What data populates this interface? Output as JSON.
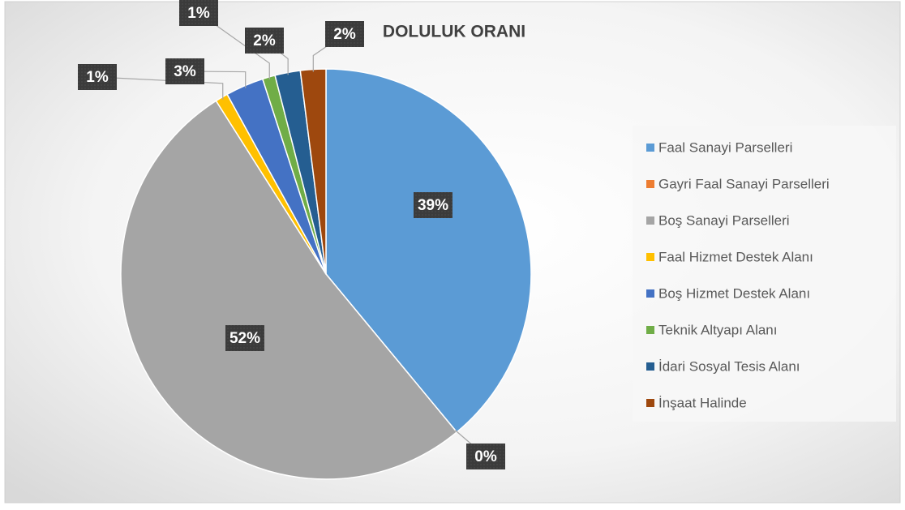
{
  "chart_data": {
    "type": "pie",
    "title": "DOLULUK ORANI",
    "categories": [
      "Faal Sanayi Parselleri",
      "Gayri Faal Sanayi Parselleri",
      "Boş Sanayi Parselleri",
      "Faal Hizmet Destek Alanı",
      "Boş Hizmet Destek Alanı",
      "Teknik Altyapı Alanı",
      "İdari Sosyal Tesis Alanı",
      "İnşaat Halinde"
    ],
    "values": [
      39,
      0,
      52,
      1,
      3,
      1,
      2,
      2
    ],
    "value_labels": [
      "39%",
      "0%",
      "52%",
      "1%",
      "3%",
      "1%",
      "2%",
      "2%"
    ],
    "colors": [
      "#5b9bd5",
      "#ed7d31",
      "#a5a5a5",
      "#ffc000",
      "#4472c4",
      "#70ad47",
      "#255e91",
      "#9e480e"
    ],
    "legend": "right"
  }
}
